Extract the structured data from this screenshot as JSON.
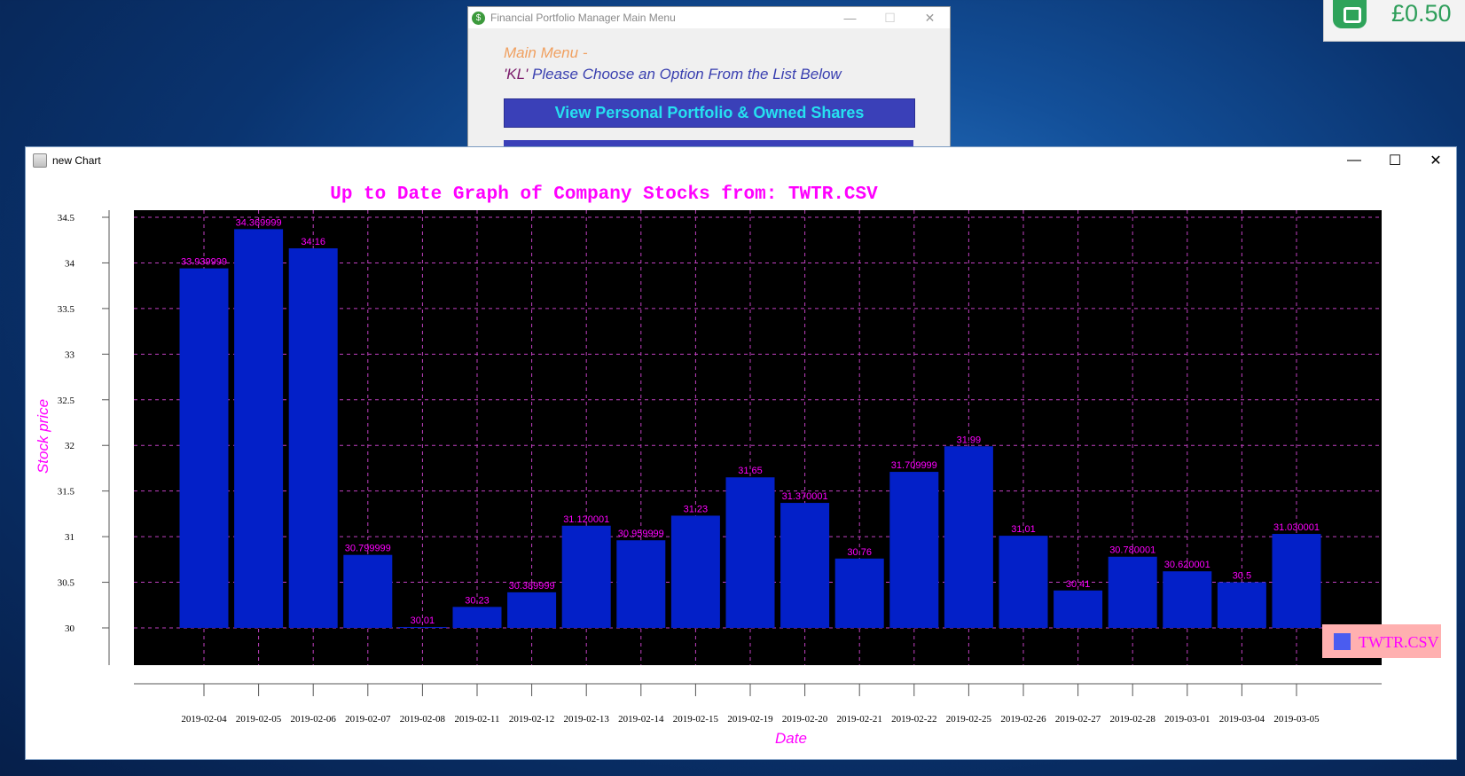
{
  "menu_window": {
    "title": "Financial Portfolio Manager Main Menu",
    "app_icon_glyph": "$",
    "heading": "Main Menu -",
    "user": "'KL'",
    "prompt": " Please Choose an Option From the List Below",
    "option_1": "View Personal Portfolio & Owned Shares",
    "minimize_glyph": "—",
    "maximize_glyph": "☐",
    "close_glyph": "✕"
  },
  "badge": {
    "value": "£0.50",
    "icon": "chat-bubble-icon"
  },
  "chart_window": {
    "title": "new Chart",
    "minimize_glyph": "—",
    "maximize_glyph": "☐",
    "close_glyph": "✕"
  },
  "chart_data": {
    "type": "bar",
    "title": "Up to Date Graph of Company Stocks from: TWTR.CSV",
    "xlabel": "Date",
    "ylabel": "Stock price",
    "ylim": [
      30,
      34.5
    ],
    "yticks": [
      "30",
      "30.5",
      "31",
      "31.5",
      "32",
      "32.5",
      "33",
      "33.5",
      "34",
      "34.5"
    ],
    "grid": true,
    "legend_position": "bottom-right",
    "colors": {
      "bar": "#0320c8",
      "plot_background": "#000000",
      "grid": "#c040c0",
      "label": "#ff00ff",
      "legend_background": "#ffb0b0",
      "legend_swatch": "#4a5cf0"
    },
    "categories": [
      "2019-02-04",
      "2019-02-05",
      "2019-02-06",
      "2019-02-07",
      "2019-02-08",
      "2019-02-11",
      "2019-02-12",
      "2019-02-13",
      "2019-02-14",
      "2019-02-15",
      "2019-02-19",
      "2019-02-20",
      "2019-02-21",
      "2019-02-22",
      "2019-02-25",
      "2019-02-26",
      "2019-02-27",
      "2019-02-28",
      "2019-03-01",
      "2019-03-04",
      "2019-03-05"
    ],
    "series": [
      {
        "name": "TWTR.CSV",
        "values": [
          33.939999,
          34.369999,
          34.16,
          30.799999,
          30.01,
          30.23,
          30.389999,
          31.120001,
          30.959999,
          31.23,
          31.65,
          31.370001,
          30.76,
          31.709999,
          31.99,
          31.01,
          30.41,
          30.780001,
          30.620001,
          30.5,
          31.030001
        ],
        "labels": [
          "33.939999",
          "34.369999",
          "34.16",
          "30.799999",
          "30.01",
          "30.23",
          "30.389999",
          "31.120001",
          "30.959999",
          "31.23",
          "31.65",
          "31.370001",
          "30.76",
          "31.709999",
          "31.99",
          "31.01",
          "30.41",
          "30.780001",
          "30.620001",
          "30.5",
          "31.030001"
        ]
      }
    ]
  }
}
